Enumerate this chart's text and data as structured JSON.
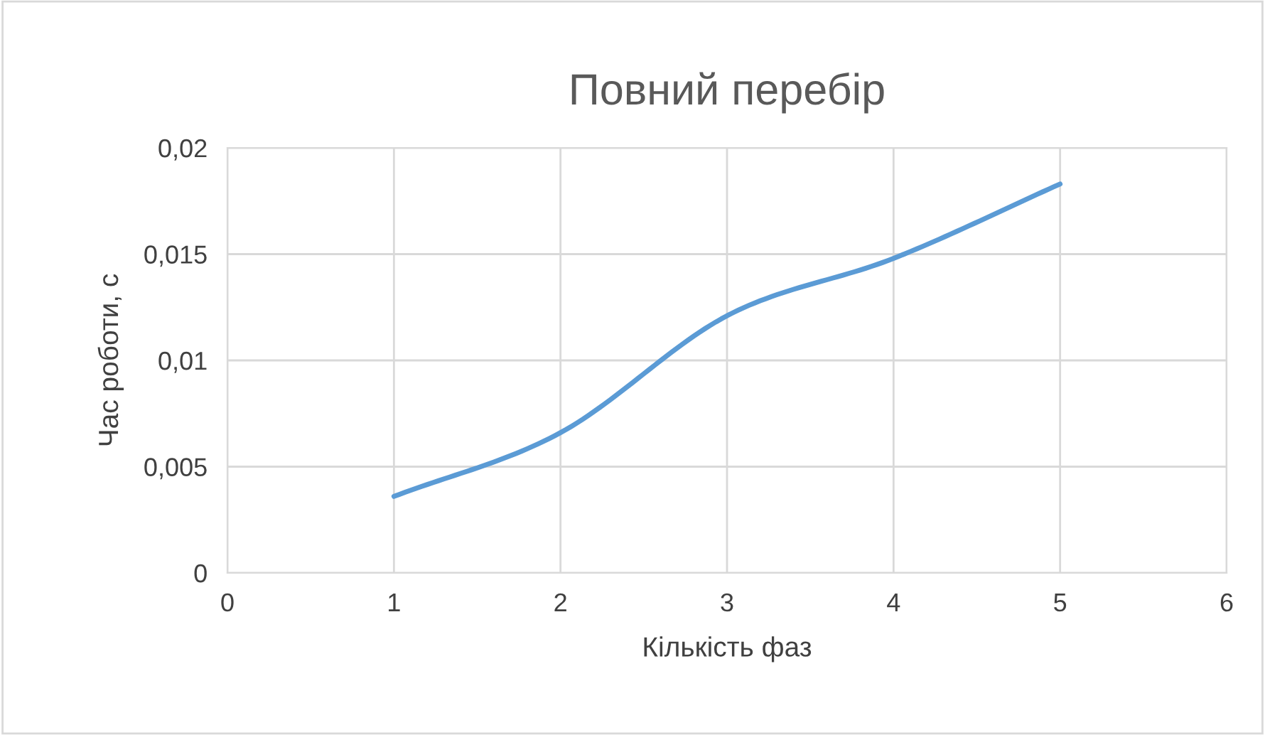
{
  "chart_data": {
    "type": "line",
    "title": "Повний перебір",
    "xlabel": "Кількість фаз",
    "ylabel": "Час роботи, с",
    "x": [
      1,
      2,
      3,
      4,
      5
    ],
    "series": [
      {
        "color": "#5b9bd5",
        "values": [
          0.0036,
          0.0066,
          0.0121,
          0.0148,
          0.0183
        ]
      }
    ],
    "xlim": [
      0,
      6
    ],
    "xticks": [
      0,
      1,
      2,
      3,
      4,
      5,
      6
    ],
    "ylim": [
      0,
      0.02
    ],
    "yticks": [
      0,
      {
        "value": 0.005,
        "label": "0,005"
      },
      {
        "value": 0.01,
        "label": "0,01"
      },
      {
        "value": 0.015,
        "label": "0,015"
      },
      {
        "value": 0.02,
        "label": "0,02"
      }
    ],
    "grid": true,
    "marker": "none",
    "line_style": "solid",
    "legend": false
  }
}
